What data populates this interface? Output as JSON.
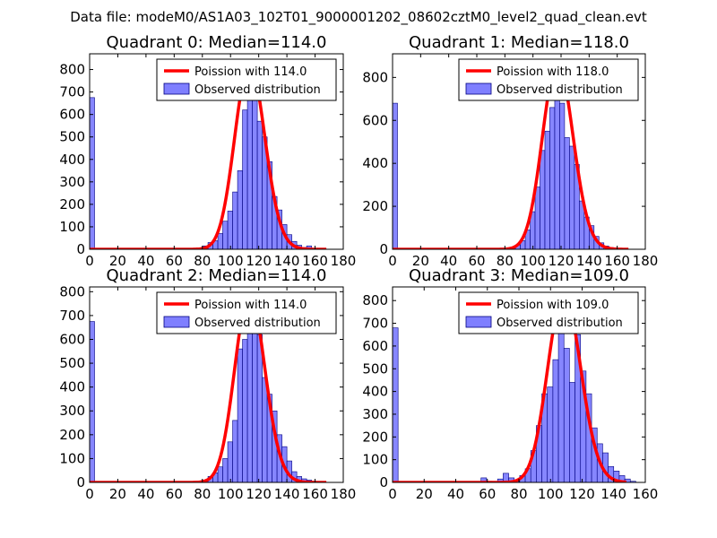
{
  "figure_title": "Data file: modeM0/AS1A03_102T01_9000001202_08602cztM0_level2_quad_clean.evt",
  "colors": {
    "curve": "#ff0000",
    "bar_fill": "#7f7fff",
    "bar_edge": "#00007f",
    "axes": "#000000"
  },
  "chart_data": [
    {
      "type": "bar",
      "title": "Quadrant 0: Median=114.0",
      "xlim": [
        0,
        180
      ],
      "ylim": [
        0,
        870
      ],
      "xticks": [
        "0",
        "20",
        "40",
        "60",
        "80",
        "100",
        "120",
        "140",
        "160",
        "180"
      ],
      "yticks": [
        "0",
        "100",
        "200",
        "300",
        "400",
        "500",
        "600",
        "700",
        "800"
      ],
      "legend_curve": "Poission with 114.0",
      "legend_bars": "Observed distribution",
      "bin_width": 3.5,
      "bars": [
        [
          0,
          675
        ],
        [
          70,
          2
        ],
        [
          73.5,
          3
        ],
        [
          77,
          5
        ],
        [
          80.5,
          15
        ],
        [
          84,
          30
        ],
        [
          87.5,
          38
        ],
        [
          91,
          70
        ],
        [
          94.5,
          125
        ],
        [
          98,
          170
        ],
        [
          101.5,
          255
        ],
        [
          105,
          350
        ],
        [
          108.5,
          620
        ],
        [
          112,
          670
        ],
        [
          115.5,
          740
        ],
        [
          119,
          570
        ],
        [
          122.5,
          500
        ],
        [
          126,
          390
        ],
        [
          129.5,
          235
        ],
        [
          133,
          175
        ],
        [
          136.5,
          110
        ],
        [
          140,
          65
        ],
        [
          143.5,
          35
        ],
        [
          147,
          18
        ],
        [
          150.5,
          8
        ],
        [
          154,
          15
        ],
        [
          157.5,
          2
        ],
        [
          161,
          1
        ]
      ],
      "poisson_mean": 114.0,
      "poisson_peak": 825
    },
    {
      "type": "bar",
      "title": "Quadrant 1: Median=118.0",
      "xlim": [
        0,
        180
      ],
      "ylim": [
        0,
        910
      ],
      "xticks": [
        "0",
        "20",
        "40",
        "60",
        "80",
        "100",
        "120",
        "140",
        "160",
        "180"
      ],
      "yticks": [
        "0",
        "200",
        "400",
        "600",
        "800"
      ],
      "legend_curve": "Poission with 118.0",
      "legend_bars": "Observed distribution",
      "bin_width": 3.5,
      "bars": [
        [
          0,
          680
        ],
        [
          73.5,
          2
        ],
        [
          77,
          3
        ],
        [
          80.5,
          5
        ],
        [
          84,
          10
        ],
        [
          87.5,
          20
        ],
        [
          91,
          40
        ],
        [
          94.5,
          90
        ],
        [
          98,
          175
        ],
        [
          101.5,
          290
        ],
        [
          105,
          460
        ],
        [
          108.5,
          550
        ],
        [
          112,
          660
        ],
        [
          115.5,
          820
        ],
        [
          119,
          680
        ],
        [
          122.5,
          520
        ],
        [
          126,
          480
        ],
        [
          129.5,
          395
        ],
        [
          133,
          225
        ],
        [
          136.5,
          150
        ],
        [
          140,
          110
        ],
        [
          143.5,
          60
        ],
        [
          147,
          30
        ],
        [
          150.5,
          15
        ],
        [
          154,
          8
        ],
        [
          157.5,
          4
        ],
        [
          161,
          1
        ],
        [
          164.5,
          1
        ]
      ],
      "poisson_mean": 118.0,
      "poisson_peak": 870
    },
    {
      "type": "bar",
      "title": "Quadrant 2: Median=114.0",
      "xlim": [
        0,
        180
      ],
      "ylim": [
        0,
        820
      ],
      "xticks": [
        "0",
        "20",
        "40",
        "60",
        "80",
        "100",
        "120",
        "140",
        "160",
        "180"
      ],
      "yticks": [
        "0",
        "100",
        "200",
        "300",
        "400",
        "500",
        "600",
        "700",
        "800"
      ],
      "legend_curve": "Poission with 114.0",
      "legend_bars": "Observed distribution",
      "bin_width": 3.5,
      "bars": [
        [
          0,
          675
        ],
        [
          66.5,
          2
        ],
        [
          70,
          3
        ],
        [
          77,
          4
        ],
        [
          80.5,
          10
        ],
        [
          84,
          25
        ],
        [
          87.5,
          40
        ],
        [
          91,
          65
        ],
        [
          94.5,
          100
        ],
        [
          98,
          170
        ],
        [
          101.5,
          260
        ],
        [
          105,
          560
        ],
        [
          108.5,
          600
        ],
        [
          112,
          700
        ],
        [
          115.5,
          720
        ],
        [
          119,
          620
        ],
        [
          122.5,
          440
        ],
        [
          126,
          370
        ],
        [
          129.5,
          300
        ],
        [
          133,
          200
        ],
        [
          136.5,
          150
        ],
        [
          140,
          90
        ],
        [
          143.5,
          45
        ],
        [
          147,
          25
        ],
        [
          150.5,
          15
        ],
        [
          154,
          10
        ],
        [
          157.5,
          5
        ],
        [
          161,
          3
        ]
      ],
      "poisson_mean": 114.0,
      "poisson_peak": 790
    },
    {
      "type": "bar",
      "title": "Quadrant 3: Median=109.0",
      "xlim": [
        0,
        160
      ],
      "ylim": [
        0,
        860
      ],
      "xticks": [
        "0",
        "20",
        "40",
        "60",
        "80",
        "100",
        "120",
        "140",
        "160"
      ],
      "yticks": [
        "0",
        "100",
        "200",
        "300",
        "400",
        "500",
        "600",
        "700",
        "800"
      ],
      "legend_curve": "Poission with 109.0",
      "legend_bars": "Observed distribution",
      "bin_width": 3.5,
      "bars": [
        [
          0,
          680
        ],
        [
          56,
          20
        ],
        [
          59.5,
          5
        ],
        [
          63,
          3
        ],
        [
          66.5,
          15
        ],
        [
          70,
          40
        ],
        [
          73.5,
          20
        ],
        [
          77,
          10
        ],
        [
          80.5,
          30
        ],
        [
          84,
          60
        ],
        [
          87.5,
          140
        ],
        [
          91,
          250
        ],
        [
          94.5,
          390
        ],
        [
          98,
          420
        ],
        [
          101.5,
          540
        ],
        [
          105,
          750
        ],
        [
          108.5,
          590
        ],
        [
          112,
          440
        ],
        [
          115.5,
          650
        ],
        [
          119,
          490
        ],
        [
          122.5,
          390
        ],
        [
          126,
          240
        ],
        [
          129.5,
          170
        ],
        [
          133,
          130
        ],
        [
          136.5,
          70
        ],
        [
          140,
          50
        ],
        [
          143.5,
          30
        ],
        [
          147,
          15
        ],
        [
          150.5,
          5
        ]
      ],
      "poisson_mean": 109.0,
      "poisson_peak": 830
    }
  ]
}
